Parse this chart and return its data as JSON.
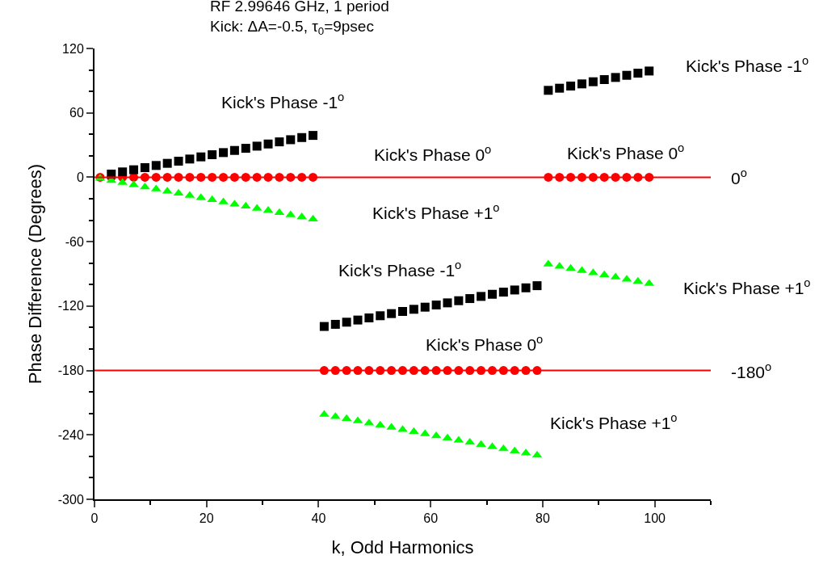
{
  "chart_data": {
    "type": "scatter",
    "title": "RF 2.99646 GHz, 1 period",
    "subtitle": "Kick: ΔA=-0.5, τ$_{0}$=9psec",
    "xlabel": "k, Odd Harmonics",
    "ylabel": "Phase Difference (Degrees)",
    "x": [
      1,
      3,
      5,
      7,
      9,
      11,
      13,
      15,
      17,
      19,
      21,
      23,
      25,
      27,
      29,
      31,
      33,
      35,
      37,
      39,
      41,
      43,
      45,
      47,
      49,
      51,
      53,
      55,
      57,
      59,
      61,
      63,
      65,
      67,
      69,
      71,
      73,
      75,
      77,
      79,
      81,
      83,
      85,
      87,
      89,
      91,
      93,
      95,
      97,
      99
    ],
    "series": [
      {
        "color": "#000000",
        "marker": "square",
        "values": [
          null,
          3,
          5,
          7,
          9,
          11,
          13,
          15,
          17,
          19,
          21,
          23,
          25,
          27,
          29,
          31,
          33,
          35,
          37,
          39,
          -139,
          -137,
          -135,
          -133,
          -131,
          -129,
          -127,
          -125,
          -123,
          -121,
          -119,
          -117,
          -115,
          -113,
          -111,
          -109,
          -107,
          -105,
          -103,
          -101,
          81,
          83,
          85,
          87,
          89,
          91,
          93,
          95,
          97,
          99
        ]
      },
      {
        "color": "#ff0000",
        "marker": "circle",
        "values": [
          0,
          0,
          0,
          0,
          0,
          0,
          0,
          0,
          0,
          0,
          0,
          0,
          0,
          0,
          0,
          0,
          0,
          0,
          0,
          0,
          -180,
          -180,
          -180,
          -180,
          -180,
          -180,
          -180,
          -180,
          -180,
          -180,
          -180,
          -180,
          -180,
          -180,
          -180,
          -180,
          -180,
          -180,
          -180,
          -180,
          0,
          0,
          0,
          0,
          0,
          0,
          0,
          0,
          0,
          0
        ]
      },
      {
        "color": "#00ff00",
        "marker": "triangle",
        "values": [
          -1,
          -3,
          -5,
          -7,
          -9,
          -11,
          -13,
          -15,
          -17,
          -19,
          -21,
          -23,
          -25,
          -27,
          -29,
          -31,
          -33,
          -35,
          -37,
          -39,
          -221,
          -223,
          -225,
          -227,
          -229,
          -231,
          -233,
          -235,
          -237,
          -239,
          -241,
          -243,
          -245,
          -247,
          -249,
          -251,
          -253,
          -255,
          -257,
          -259,
          -81,
          -83,
          -85,
          -87,
          -89,
          -91,
          -93,
          -95,
          -97,
          -99
        ]
      }
    ],
    "xlim": [
      0,
      110
    ],
    "xticks": [
      0,
      20,
      40,
      60,
      80,
      100
    ],
    "ylim": [
      -300,
      120
    ],
    "yticks": [
      -300,
      -240,
      -180,
      -120,
      -60,
      0,
      60,
      120
    ],
    "ref_lines": [
      {
        "axis": "y",
        "value": 0,
        "label": "0$^{o}$",
        "color": "#ff0000"
      },
      {
        "axis": "y",
        "value": -180,
        "label": "-180$^{o}$",
        "color": "#ff0000"
      }
    ],
    "annotations": [
      "Kick's Phase -1$^{o}$",
      "Kick's Phase 0$^{o}$",
      "Kick's Phase +1$^{o}$",
      "Kick's Phase -1$^{o}$",
      "Kick's Phase 0$^{o}$",
      "Kick's Phase -1$^{o}$",
      "Kick's Phase +1$^{o}$",
      "Kick's Phase 0$^{o}$",
      "Kick's Phase +1$^{o}$"
    ],
    "grid": false
  }
}
